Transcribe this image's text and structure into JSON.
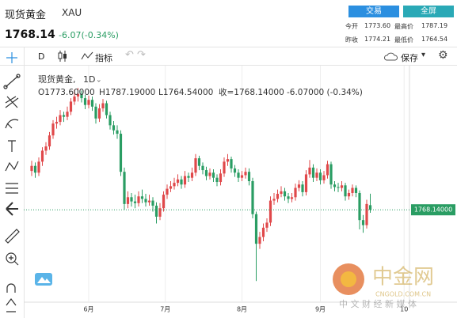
{
  "header": {
    "name": "现货黄金",
    "symbol": "XAU",
    "price": "1768.14",
    "change": "-6.07(-0.34%)",
    "buttons": [
      "交易",
      "全屏"
    ],
    "stats": [
      [
        "今开",
        "1773.60",
        "最高价",
        "1787.19"
      ],
      [
        "昨收",
        "1774.21",
        "最低价",
        "1764.54"
      ]
    ]
  },
  "toolbar": {
    "interval": "D",
    "indicators": "指标",
    "save": "保存"
  },
  "chart": {
    "type": "candlestick",
    "legend_name": "现货黄金, ",
    "legend_interval": "1D",
    "legend_ohlc": [
      "O1773.60000",
      "H1787.19000",
      "L1764.54000",
      "收=1768.14000",
      "-6.07000 (-0.34%)"
    ],
    "up_color": "#e0484a",
    "down_color": "#2a9d63",
    "grid": true,
    "ylim": [
      1659,
      1930
    ],
    "last_price": {
      "value": 1768.14,
      "label": "1768.14000"
    },
    "xticks": [
      {
        "value": 16,
        "label": "6月"
      },
      {
        "value": 37.5,
        "label": "7月"
      },
      {
        "value": 59,
        "label": "8月"
      },
      {
        "value": 81,
        "label": "9月"
      },
      {
        "value": 104.5,
        "label": "10"
      }
    ],
    "candles": [
      [
        1814,
        1826,
        1808,
        1820
      ],
      [
        1820,
        1824,
        1806,
        1812
      ],
      [
        1812,
        1830,
        1808,
        1825
      ],
      [
        1825,
        1842,
        1820,
        1838
      ],
      [
        1838,
        1848,
        1833,
        1843
      ],
      [
        1843,
        1860,
        1839,
        1856
      ],
      [
        1856,
        1874,
        1852,
        1870
      ],
      [
        1870,
        1878,
        1864,
        1872
      ],
      [
        1872,
        1886,
        1868,
        1880
      ],
      [
        1880,
        1884,
        1872,
        1878
      ],
      [
        1878,
        1890,
        1874,
        1884
      ],
      [
        1884,
        1900,
        1880,
        1896
      ],
      [
        1896,
        1910,
        1892,
        1902
      ],
      [
        1902,
        1912,
        1896,
        1905
      ],
      [
        1905,
        1909,
        1895,
        1900
      ],
      [
        1900,
        1904,
        1887,
        1892
      ],
      [
        1892,
        1903,
        1888,
        1898
      ],
      [
        1898,
        1902,
        1885,
        1890
      ],
      [
        1890,
        1894,
        1870,
        1876
      ],
      [
        1876,
        1893,
        1872,
        1888
      ],
      [
        1888,
        1899,
        1884,
        1894
      ],
      [
        1894,
        1897,
        1876,
        1880
      ],
      [
        1880,
        1884,
        1863,
        1868
      ],
      [
        1868,
        1873,
        1857,
        1862
      ],
      [
        1862,
        1868,
        1852,
        1858
      ],
      [
        1858,
        1862,
        1808,
        1813
      ],
      [
        1813,
        1818,
        1768,
        1775
      ],
      [
        1775,
        1790,
        1770,
        1783
      ],
      [
        1783,
        1788,
        1772,
        1778
      ],
      [
        1778,
        1786,
        1770,
        1776
      ],
      [
        1776,
        1790,
        1772,
        1784
      ],
      [
        1784,
        1792,
        1776,
        1781
      ],
      [
        1781,
        1787,
        1772,
        1777
      ],
      [
        1777,
        1786,
        1773,
        1779
      ],
      [
        1779,
        1783,
        1766,
        1773
      ],
      [
        1773,
        1777,
        1752,
        1760
      ],
      [
        1760,
        1776,
        1756,
        1770
      ],
      [
        1770,
        1790,
        1766,
        1786
      ],
      [
        1786,
        1798,
        1781,
        1793
      ],
      [
        1793,
        1802,
        1789,
        1796
      ],
      [
        1796,
        1806,
        1792,
        1800
      ],
      [
        1800,
        1810,
        1796,
        1804
      ],
      [
        1804,
        1808,
        1793,
        1798
      ],
      [
        1798,
        1814,
        1794,
        1808
      ],
      [
        1808,
        1812,
        1801,
        1806
      ],
      [
        1806,
        1818,
        1802,
        1812
      ],
      [
        1812,
        1834,
        1808,
        1829
      ],
      [
        1829,
        1832,
        1815,
        1820
      ],
      [
        1820,
        1824,
        1810,
        1815
      ],
      [
        1815,
        1819,
        1803,
        1808
      ],
      [
        1808,
        1817,
        1804,
        1812
      ],
      [
        1812,
        1816,
        1801,
        1806
      ],
      [
        1806,
        1810,
        1796,
        1801
      ],
      [
        1801,
        1816,
        1797,
        1811
      ],
      [
        1811,
        1830,
        1807,
        1825
      ],
      [
        1825,
        1834,
        1820,
        1828
      ],
      [
        1828,
        1831,
        1812,
        1817
      ],
      [
        1817,
        1821,
        1807,
        1812
      ],
      [
        1812,
        1816,
        1801,
        1806
      ],
      [
        1806,
        1814,
        1802,
        1809
      ],
      [
        1809,
        1818,
        1805,
        1813
      ],
      [
        1813,
        1817,
        1797,
        1802
      ],
      [
        1802,
        1806,
        1758,
        1763
      ],
      [
        1763,
        1766,
        1684,
        1728
      ],
      [
        1728,
        1742,
        1722,
        1736
      ],
      [
        1736,
        1752,
        1731,
        1747
      ],
      [
        1747,
        1758,
        1742,
        1753
      ],
      [
        1753,
        1784,
        1749,
        1779
      ],
      [
        1779,
        1788,
        1774,
        1781
      ],
      [
        1781,
        1792,
        1777,
        1787
      ],
      [
        1787,
        1796,
        1783,
        1790
      ],
      [
        1790,
        1794,
        1779,
        1784
      ],
      [
        1784,
        1788,
        1776,
        1781
      ],
      [
        1781,
        1788,
        1777,
        1783
      ],
      [
        1783,
        1799,
        1779,
        1794
      ],
      [
        1794,
        1803,
        1790,
        1798
      ],
      [
        1798,
        1802,
        1784,
        1789
      ],
      [
        1789,
        1815,
        1785,
        1810
      ],
      [
        1810,
        1827,
        1806,
        1818
      ],
      [
        1818,
        1822,
        1801,
        1806
      ],
      [
        1806,
        1817,
        1802,
        1812
      ],
      [
        1812,
        1816,
        1798,
        1803
      ],
      [
        1803,
        1814,
        1799,
        1809
      ],
      [
        1809,
        1826,
        1805,
        1822
      ],
      [
        1822,
        1825,
        1793,
        1798
      ],
      [
        1798,
        1802,
        1790,
        1795
      ],
      [
        1795,
        1800,
        1789,
        1794
      ],
      [
        1794,
        1802,
        1790,
        1797
      ],
      [
        1797,
        1800,
        1779,
        1784
      ],
      [
        1784,
        1792,
        1780,
        1788
      ],
      [
        1788,
        1798,
        1784,
        1794
      ],
      [
        1794,
        1797,
        1783,
        1788
      ],
      [
        1788,
        1791,
        1745,
        1756
      ],
      [
        1756,
        1762,
        1741,
        1750
      ],
      [
        1750,
        1780,
        1746,
        1775
      ],
      [
        1773.6,
        1787.19,
        1764.54,
        1768.14
      ]
    ]
  },
  "watermark": {
    "brand": "中金网",
    "site": "CNGOLD.COM.CN",
    "slogan": "中 文 财 经 新 媒 体"
  }
}
